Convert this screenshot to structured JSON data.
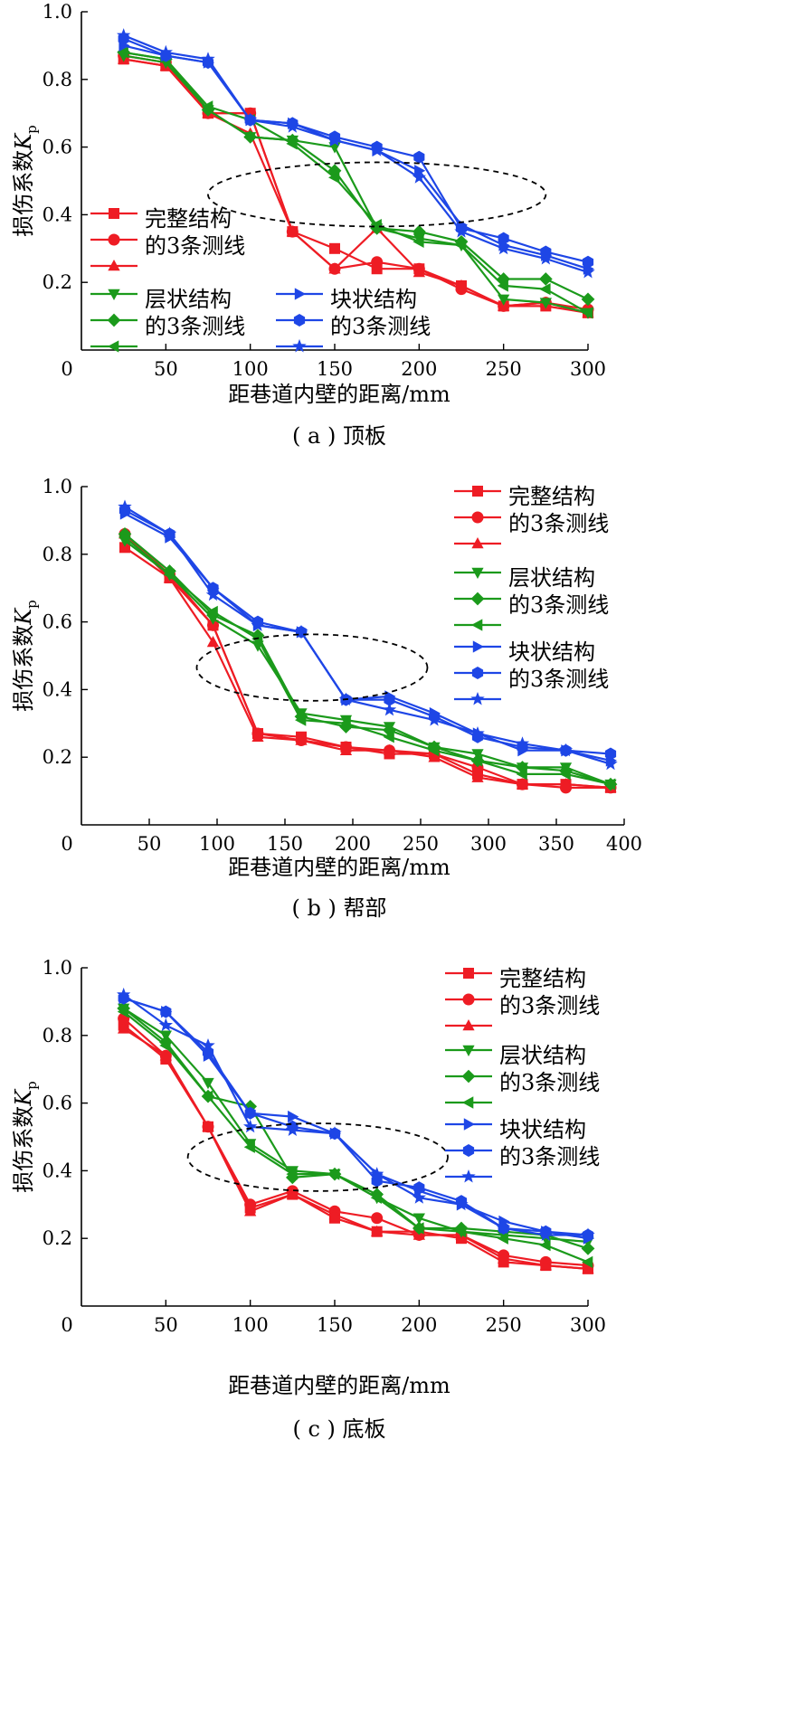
{
  "chart_data": [
    {
      "type": "line",
      "caption": "( a ) 顶板",
      "xlabel": "距巷道内壁的距离/mm",
      "ylabel": "损伤系数",
      "ylabel_symbol": "K",
      "ylabel_sub": "p",
      "xlim": [
        0,
        300
      ],
      "ylim": [
        0,
        1.0
      ],
      "xticks": [
        0,
        50,
        100,
        150,
        200,
        250,
        300
      ],
      "yticks": [
        0.2,
        0.4,
        0.6,
        0.8,
        1.0
      ],
      "x": [
        25,
        50,
        75,
        100,
        125,
        150,
        175,
        200,
        225,
        250,
        275,
        300
      ],
      "legend_groups": [
        {
          "color": "#ee1c24",
          "line1": "完整结构",
          "line2": "的3条测线",
          "markers": [
            "square",
            "circle",
            "triangle-up"
          ]
        },
        {
          "color": "#1b9a1b",
          "line1": "层状结构",
          "line2": "的3条测线",
          "markers": [
            "triangle-down",
            "diamond",
            "triangle-left"
          ]
        },
        {
          "color": "#1e46e6",
          "line1": "块状结构",
          "line2": "的3条测线",
          "markers": [
            "triangle-right",
            "hexagon",
            "star"
          ]
        }
      ],
      "series": [
        {
          "group": 0,
          "marker": "square",
          "values": [
            0.86,
            0.84,
            0.7,
            0.7,
            0.35,
            0.3,
            0.24,
            0.24,
            0.19,
            0.13,
            0.13,
            0.11
          ]
        },
        {
          "group": 0,
          "marker": "circle",
          "values": [
            0.87,
            0.85,
            0.7,
            0.7,
            0.35,
            0.24,
            0.26,
            0.24,
            0.18,
            0.13,
            0.14,
            0.12
          ]
        },
        {
          "group": 0,
          "marker": "triangle-up",
          "values": [
            0.86,
            0.84,
            0.7,
            0.64,
            0.35,
            0.24,
            0.36,
            0.23,
            0.19,
            0.13,
            0.14,
            0.11
          ]
        },
        {
          "group": 1,
          "marker": "triangle-down",
          "values": [
            0.87,
            0.85,
            0.71,
            0.63,
            0.62,
            0.6,
            0.36,
            0.33,
            0.31,
            0.15,
            0.14,
            0.11
          ]
        },
        {
          "group": 1,
          "marker": "diamond",
          "values": [
            0.88,
            0.86,
            0.71,
            0.63,
            0.62,
            0.53,
            0.36,
            0.35,
            0.32,
            0.21,
            0.21,
            0.15
          ]
        },
        {
          "group": 1,
          "marker": "triangle-left",
          "values": [
            0.88,
            0.86,
            0.72,
            0.68,
            0.61,
            0.51,
            0.37,
            0.32,
            0.31,
            0.19,
            0.18,
            0.11
          ]
        },
        {
          "group": 2,
          "marker": "triangle-right",
          "values": [
            0.9,
            0.87,
            0.85,
            0.68,
            0.67,
            0.62,
            0.59,
            0.53,
            0.37,
            0.31,
            0.28,
            0.24
          ]
        },
        {
          "group": 2,
          "marker": "hexagon",
          "values": [
            0.92,
            0.87,
            0.85,
            0.68,
            0.67,
            0.63,
            0.6,
            0.57,
            0.36,
            0.33,
            0.29,
            0.26
          ]
        },
        {
          "group": 2,
          "marker": "star",
          "values": [
            0.93,
            0.88,
            0.86,
            0.68,
            0.66,
            0.62,
            0.59,
            0.51,
            0.35,
            0.3,
            0.27,
            0.23
          ]
        }
      ],
      "ellipse": {
        "cx": 175,
        "cy": 0.46,
        "rx": 100,
        "ry": 0.095
      }
    },
    {
      "type": "line",
      "caption": "( b ) 帮部",
      "xlabel": "距巷道内壁的距离/mm",
      "ylabel": "损伤系数",
      "ylabel_symbol": "K",
      "ylabel_sub": "p",
      "xlim": [
        0,
        400
      ],
      "ylim": [
        0,
        1.0
      ],
      "xticks": [
        0,
        50,
        100,
        150,
        200,
        250,
        300,
        350,
        400
      ],
      "yticks": [
        0.2,
        0.4,
        0.6,
        0.8,
        1.0
      ],
      "x": [
        32,
        65,
        97,
        130,
        162,
        195,
        227,
        260,
        292,
        325,
        357,
        390
      ],
      "legend_groups": [
        {
          "color": "#ee1c24",
          "line1": "完整结构",
          "line2": "的3条测线",
          "markers": [
            "square",
            "circle",
            "triangle-up"
          ]
        },
        {
          "color": "#1b9a1b",
          "line1": "层状结构",
          "line2": "的3条测线",
          "markers": [
            "triangle-down",
            "diamond",
            "triangle-left"
          ]
        },
        {
          "color": "#1e46e6",
          "line1": "块状结构",
          "line2": "的3条测线",
          "markers": [
            "triangle-right",
            "hexagon",
            "star"
          ]
        }
      ],
      "series": [
        {
          "group": 0,
          "marker": "square",
          "values": [
            0.82,
            0.73,
            0.59,
            0.27,
            0.26,
            0.23,
            0.21,
            0.21,
            0.15,
            0.12,
            0.12,
            0.11
          ]
        },
        {
          "group": 0,
          "marker": "circle",
          "values": [
            0.86,
            0.74,
            0.59,
            0.27,
            0.25,
            0.23,
            0.22,
            0.21,
            0.17,
            0.12,
            0.11,
            0.11
          ]
        },
        {
          "group": 0,
          "marker": "triangle-up",
          "values": [
            0.86,
            0.73,
            0.54,
            0.26,
            0.25,
            0.22,
            0.22,
            0.2,
            0.14,
            0.12,
            0.12,
            0.11
          ]
        },
        {
          "group": 1,
          "marker": "triangle-down",
          "values": [
            0.84,
            0.74,
            0.61,
            0.53,
            0.33,
            0.31,
            0.29,
            0.23,
            0.21,
            0.17,
            0.17,
            0.12
          ]
        },
        {
          "group": 1,
          "marker": "diamond",
          "values": [
            0.86,
            0.75,
            0.62,
            0.56,
            0.32,
            0.29,
            0.28,
            0.23,
            0.19,
            0.17,
            0.16,
            0.12
          ]
        },
        {
          "group": 1,
          "marker": "triangle-left",
          "values": [
            0.85,
            0.74,
            0.63,
            0.55,
            0.31,
            0.3,
            0.26,
            0.22,
            0.19,
            0.15,
            0.15,
            0.12
          ]
        },
        {
          "group": 2,
          "marker": "triangle-right",
          "values": [
            0.92,
            0.85,
            0.7,
            0.59,
            0.57,
            0.37,
            0.38,
            0.33,
            0.27,
            0.22,
            0.22,
            0.19
          ]
        },
        {
          "group": 2,
          "marker": "hexagon",
          "values": [
            0.93,
            0.86,
            0.7,
            0.6,
            0.57,
            0.37,
            0.37,
            0.32,
            0.26,
            0.23,
            0.22,
            0.21
          ]
        },
        {
          "group": 2,
          "marker": "star",
          "values": [
            0.94,
            0.86,
            0.68,
            0.59,
            0.57,
            0.37,
            0.34,
            0.31,
            0.27,
            0.24,
            0.22,
            0.18
          ]
        }
      ],
      "ellipse": {
        "cx": 170,
        "cy": 0.465,
        "rx": 85,
        "ry": 0.098
      }
    },
    {
      "type": "line",
      "caption": "( c ) 底板",
      "xlabel": "距巷道内壁的距离/mm",
      "ylabel": "损伤系数",
      "ylabel_symbol": "K",
      "ylabel_sub": "p",
      "xlim": [
        0,
        300
      ],
      "ylim": [
        0,
        1.0
      ],
      "xticks": [
        0,
        50,
        100,
        150,
        200,
        250,
        300
      ],
      "yticks": [
        0.2,
        0.4,
        0.6,
        0.8,
        1.0
      ],
      "x": [
        25,
        50,
        75,
        100,
        125,
        150,
        175,
        200,
        225,
        250,
        275,
        300
      ],
      "legend_groups": [
        {
          "color": "#ee1c24",
          "line1": "完整结构",
          "line2": "的3条测线",
          "markers": [
            "square",
            "circle",
            "triangle-up"
          ]
        },
        {
          "color": "#1b9a1b",
          "line1": "层状结构",
          "line2": "的3条测线",
          "markers": [
            "triangle-down",
            "diamond",
            "triangle-left"
          ]
        },
        {
          "color": "#1e46e6",
          "line1": "块状结构",
          "line2": "的3条测线",
          "markers": [
            "triangle-right",
            "hexagon",
            "star"
          ]
        }
      ],
      "series": [
        {
          "group": 0,
          "marker": "square",
          "values": [
            0.83,
            0.73,
            0.53,
            0.29,
            0.33,
            0.26,
            0.22,
            0.22,
            0.2,
            0.13,
            0.12,
            0.11
          ]
        },
        {
          "group": 0,
          "marker": "circle",
          "values": [
            0.85,
            0.74,
            0.53,
            0.3,
            0.34,
            0.28,
            0.26,
            0.21,
            0.21,
            0.15,
            0.13,
            0.12
          ]
        },
        {
          "group": 0,
          "marker": "triangle-up",
          "values": [
            0.82,
            0.74,
            0.53,
            0.28,
            0.33,
            0.27,
            0.22,
            0.21,
            0.21,
            0.14,
            0.12,
            0.11
          ]
        },
        {
          "group": 1,
          "marker": "triangle-down",
          "values": [
            0.88,
            0.8,
            0.66,
            0.48,
            0.4,
            0.39,
            0.32,
            0.26,
            0.22,
            0.21,
            0.2,
            0.19
          ]
        },
        {
          "group": 1,
          "marker": "diamond",
          "values": [
            0.88,
            0.78,
            0.62,
            0.59,
            0.38,
            0.39,
            0.33,
            0.23,
            0.23,
            0.22,
            0.21,
            0.17
          ]
        },
        {
          "group": 1,
          "marker": "triangle-left",
          "values": [
            0.87,
            0.77,
            0.62,
            0.47,
            0.39,
            0.39,
            0.32,
            0.23,
            0.22,
            0.2,
            0.18,
            0.13
          ]
        },
        {
          "group": 2,
          "marker": "triangle-right",
          "values": [
            0.91,
            0.87,
            0.74,
            0.57,
            0.56,
            0.51,
            0.39,
            0.34,
            0.3,
            0.25,
            0.22,
            0.2
          ]
        },
        {
          "group": 2,
          "marker": "hexagon",
          "values": [
            0.91,
            0.87,
            0.75,
            0.57,
            0.53,
            0.51,
            0.37,
            0.35,
            0.31,
            0.23,
            0.22,
            0.21
          ]
        },
        {
          "group": 2,
          "marker": "star",
          "values": [
            0.92,
            0.83,
            0.77,
            0.53,
            0.52,
            0.51,
            0.39,
            0.32,
            0.3,
            0.23,
            0.21,
            0.21
          ]
        }
      ],
      "ellipse": {
        "cx": 140,
        "cy": 0.44,
        "rx": 77,
        "ry": 0.1
      }
    }
  ]
}
